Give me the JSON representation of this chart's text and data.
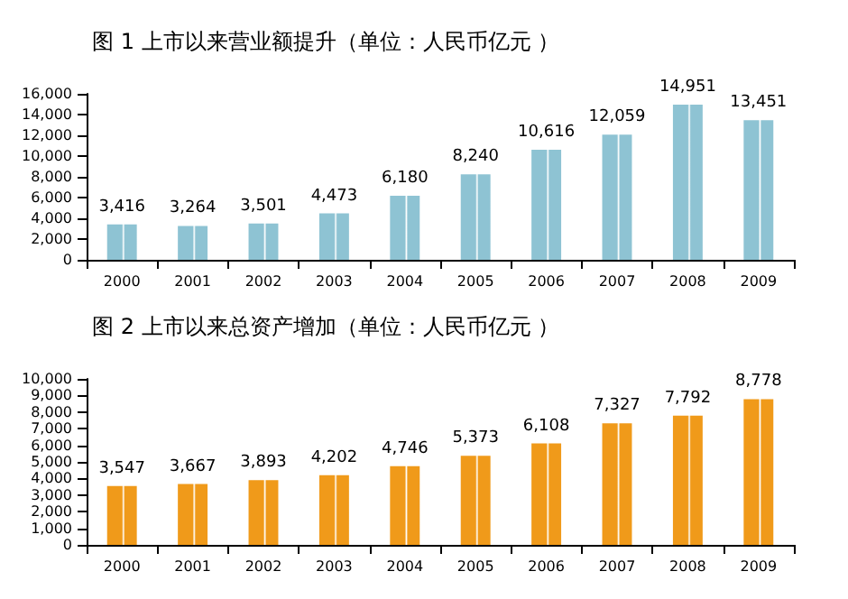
{
  "chart_data": [
    {
      "type": "bar",
      "title": "图 1 上市以来营业额提升（单位：人民币亿元 ）",
      "categories": [
        "2000",
        "2001",
        "2002",
        "2003",
        "2004",
        "2005",
        "2006",
        "2007",
        "2008",
        "2009"
      ],
      "values": [
        3416,
        3264,
        3501,
        4473,
        6180,
        8240,
        10616,
        12059,
        14951,
        13451
      ],
      "value_labels": [
        "3,416",
        "3,264",
        "3,501",
        "4,473",
        "6,180",
        "8,240",
        "10,616",
        "12,059",
        "14,951",
        "13,451"
      ],
      "color": "#8ec3d3",
      "ylim": [
        0,
        16000
      ],
      "yticks": [
        0,
        {
          "value": 2000,
          "label": "2,000"
        },
        {
          "value": 4000,
          "label": "4,000"
        },
        {
          "value": 6000,
          "label": "6,000"
        },
        {
          "value": 8000,
          "label": "8,000"
        },
        {
          "value": 10000,
          "label": "10,000"
        },
        {
          "value": 12000,
          "label": "12,000"
        },
        {
          "value": 14000,
          "label": "14,000"
        },
        {
          "value": 16000,
          "label": "16,000"
        }
      ],
      "grid": false
    },
    {
      "type": "bar",
      "title": "图 2 上市以来总资产增加（单位：人民币亿元 ）",
      "categories": [
        "2000",
        "2001",
        "2002",
        "2003",
        "2004",
        "2005",
        "2006",
        "2007",
        "2008",
        "2009"
      ],
      "values": [
        3547,
        3667,
        3893,
        4202,
        4746,
        5373,
        6108,
        7327,
        7792,
        8778
      ],
      "value_labels": [
        "3,547",
        "3,667",
        "3,893",
        "4,202",
        "4,746",
        "5,373",
        "6,108",
        "7,327",
        "7,792",
        "8,778"
      ],
      "color": "#f09a1a",
      "ylim": [
        0,
        10000
      ],
      "yticks": [
        0,
        {
          "value": 1000,
          "label": "1,000"
        },
        {
          "value": 2000,
          "label": "2,000"
        },
        {
          "value": 3000,
          "label": "3,000"
        },
        {
          "value": 4000,
          "label": "4,000"
        },
        {
          "value": 5000,
          "label": "5,000"
        },
        {
          "value": 6000,
          "label": "6,000"
        },
        {
          "value": 7000,
          "label": "7,000"
        },
        {
          "value": 8000,
          "label": "8,000"
        },
        {
          "value": 9000,
          "label": "9,000"
        },
        {
          "value": 10000,
          "label": "10,000"
        }
      ],
      "grid": false
    }
  ]
}
